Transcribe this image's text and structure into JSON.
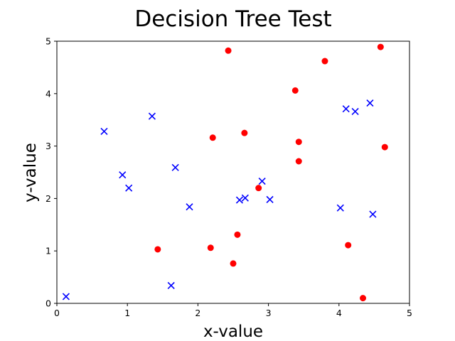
{
  "chart_data": {
    "type": "scatter",
    "title": "Decision Tree Test",
    "xlabel": "x-value",
    "ylabel": "y-value",
    "xlim": [
      0,
      5
    ],
    "ylim": [
      0,
      5
    ],
    "xticks": [
      "0",
      "1",
      "2",
      "3",
      "4",
      "5"
    ],
    "yticks": [
      "0",
      "1",
      "2",
      "3",
      "4",
      "5"
    ],
    "grid": false,
    "series": [
      {
        "marker": "circle",
        "color": "#ff0000",
        "points": [
          [
            2.43,
            4.82
          ],
          [
            3.8,
            4.62
          ],
          [
            4.59,
            4.89
          ],
          [
            3.38,
            4.06
          ],
          [
            2.21,
            3.16
          ],
          [
            2.66,
            3.25
          ],
          [
            3.43,
            3.08
          ],
          [
            4.65,
            2.98
          ],
          [
            3.43,
            2.71
          ],
          [
            2.86,
            2.2
          ],
          [
            2.56,
            1.31
          ],
          [
            4.13,
            1.11
          ],
          [
            1.43,
            1.03
          ],
          [
            2.18,
            1.06
          ],
          [
            2.5,
            0.76
          ],
          [
            4.34,
            0.1
          ]
        ]
      },
      {
        "marker": "x",
        "color": "#0000ff",
        "points": [
          [
            0.13,
            0.13
          ],
          [
            0.67,
            3.28
          ],
          [
            1.35,
            3.57
          ],
          [
            0.93,
            2.45
          ],
          [
            1.02,
            2.2
          ],
          [
            1.68,
            2.59
          ],
          [
            1.88,
            1.84
          ],
          [
            1.62,
            0.34
          ],
          [
            2.91,
            2.33
          ],
          [
            2.67,
            2.01
          ],
          [
            2.59,
            1.97
          ],
          [
            3.02,
            1.98
          ],
          [
            4.1,
            3.71
          ],
          [
            4.23,
            3.66
          ],
          [
            4.44,
            3.82
          ],
          [
            4.02,
            1.82
          ],
          [
            4.48,
            1.7
          ]
        ]
      }
    ]
  }
}
